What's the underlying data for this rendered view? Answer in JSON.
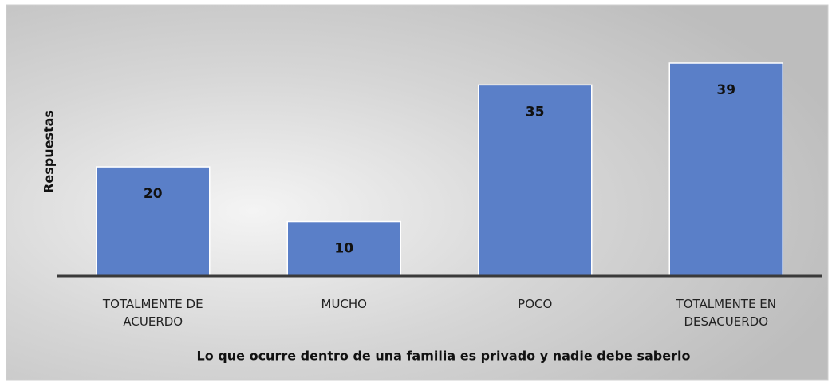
{
  "chart_data": {
    "type": "bar",
    "categories": [
      "TOTALMENTE DE ACUERDO",
      "MUCHO",
      "POCO",
      "TOTALMENTE EN DESACUERDO"
    ],
    "values": [
      20,
      10,
      35,
      39
    ],
    "color": "#5a7fc8",
    "y_label": "Respuestas",
    "x_label": "Lo que ocurre dentro de una familia es privado y nadie debe saberlo"
  }
}
